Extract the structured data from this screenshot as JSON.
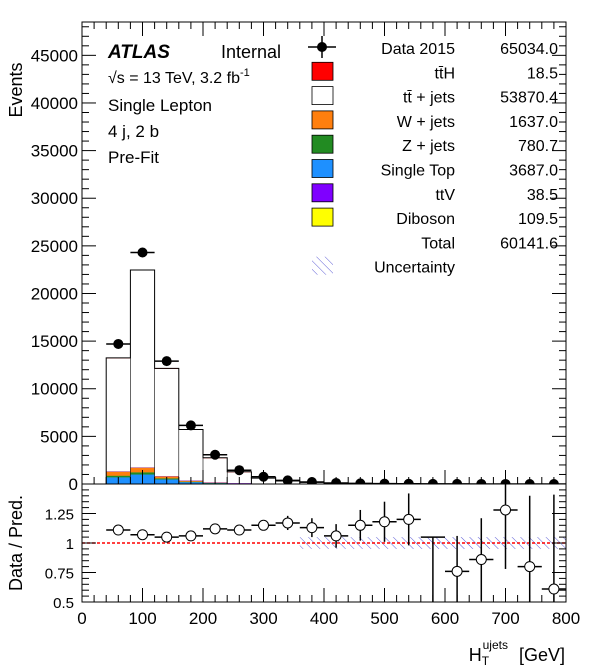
{
  "chart_data": [
    {
      "type": "bar",
      "subtype": "stacked-histogram-with-data-points",
      "xlabel": "H_T^ujets [GeV]",
      "ylabel": "Events",
      "xlim": [
        0,
        800
      ],
      "ylim": [
        0,
        48500
      ],
      "yticks": [
        0,
        5000,
        10000,
        15000,
        20000,
        25000,
        30000,
        35000,
        40000,
        45000
      ],
      "bin_edges": [
        40,
        80,
        120,
        160,
        200,
        240,
        280,
        320,
        360,
        400,
        440,
        480,
        520,
        560,
        600,
        640,
        680,
        720,
        760,
        800
      ],
      "annotations": {
        "atlas": "ATLAS",
        "internal": "Internal",
        "energy_pre": "√s = 13 TeV, 3.2 fb",
        "energy_sup": "-1",
        "channel": "Single Lepton",
        "jets": "4 j, 2 b",
        "fit": "Pre-Fit"
      },
      "legend": {
        "placement": "top-right",
        "data": {
          "label": "Data 2015",
          "value": "65034.0"
        },
        "entries": [
          {
            "label": "tt̄H",
            "value": "18.5",
            "color": "#ff0000"
          },
          {
            "label": "tt̄ + jets",
            "value": "53870.4",
            "color": "#ffffff"
          },
          {
            "label": "W + jets",
            "value": "1637.0",
            "color": "#ff7f0e"
          },
          {
            "label": "Z + jets",
            "value": "780.7",
            "color": "#228b22"
          },
          {
            "label": "Single Top",
            "value": "3687.0",
            "color": "#1e90ff"
          },
          {
            "label": "ttV",
            "value": "38.5",
            "color": "#7f00ff"
          },
          {
            "label": "Diboson",
            "value": "109.5",
            "color": "#ffff00"
          }
        ],
        "total": {
          "label": "Total",
          "value": "60141.6"
        },
        "uncertainty": {
          "label": "Uncertainty"
        }
      },
      "series": [
        {
          "name": "Single Top",
          "color": "#1e90ff",
          "values": [
            700,
            1000,
            480,
            200,
            100,
            50,
            25,
            12,
            6,
            3,
            2,
            1,
            1,
            0,
            0,
            0,
            0,
            0,
            0
          ]
        },
        {
          "name": "Z + jets",
          "color": "#228b22",
          "values": [
            180,
            230,
            110,
            50,
            25,
            12,
            6,
            3,
            2,
            1,
            1,
            0,
            0,
            0,
            0,
            0,
            0,
            0,
            0
          ]
        },
        {
          "name": "W + jets",
          "color": "#ff7f0e",
          "values": [
            420,
            480,
            220,
            110,
            50,
            25,
            13,
            6,
            3,
            2,
            1,
            1,
            0,
            0,
            0,
            0,
            0,
            0,
            0
          ]
        },
        {
          "name": "Diboson",
          "color": "#ffff00",
          "values": [
            30,
            35,
            18,
            8,
            4,
            2,
            1,
            1,
            0,
            0,
            0,
            0,
            0,
            0,
            0,
            0,
            0,
            0,
            0
          ]
        },
        {
          "name": "ttV",
          "color": "#7f00ff",
          "values": [
            8,
            12,
            7,
            4,
            2,
            1,
            1,
            0,
            0,
            0,
            0,
            0,
            0,
            0,
            0,
            0,
            0,
            0,
            0
          ]
        },
        {
          "name": "tt̄ + jets",
          "color": "#ffffff",
          "values": [
            11900,
            20700,
            11300,
            5350,
            2570,
            1190,
            565,
            290,
            160,
            90,
            55,
            30,
            20,
            10,
            6,
            4,
            3,
            2,
            1
          ]
        },
        {
          "name": "tt̄H",
          "color": "#ff0000",
          "values": [
            3,
            5,
            4,
            2,
            1,
            1,
            0,
            0,
            0,
            0,
            0,
            0,
            0,
            0,
            0,
            0,
            0,
            0,
            0
          ]
        }
      ],
      "data_points": {
        "name": "Data 2015",
        "x": [
          60,
          100,
          140,
          180,
          220,
          260,
          300,
          340,
          380,
          420,
          460,
          500,
          540,
          580,
          620,
          660,
          700,
          740,
          780
        ],
        "values": [
          14700,
          24300,
          12900,
          6150,
          3070,
          1450,
          760,
          380,
          210,
          110,
          65,
          36,
          24,
          14,
          8,
          5,
          4,
          2,
          1
        ]
      }
    },
    {
      "type": "scatter",
      "subtype": "ratio",
      "xlabel": "H_T^ujets [GeV]",
      "ylabel": "Data / Pred.",
      "xlim": [
        0,
        800
      ],
      "ylim": [
        0.5,
        1.5
      ],
      "yticks": [
        0.5,
        0.75,
        1,
        1.25
      ],
      "yticklabels": [
        "0.5",
        "0.75",
        "1",
        "1.25"
      ],
      "xticks": [
        0,
        100,
        200,
        300,
        400,
        500,
        600,
        700,
        800
      ],
      "xticklabels": [
        "0",
        "100",
        "200",
        "300",
        "400",
        "500",
        "600",
        "700",
        "800"
      ],
      "reference_line": 1,
      "x": [
        60,
        100,
        140,
        180,
        220,
        260,
        300,
        340,
        380,
        420,
        460,
        500,
        540,
        580,
        620,
        660,
        700,
        740,
        780
      ],
      "y": [
        1.11,
        1.07,
        1.05,
        1.06,
        1.12,
        1.11,
        1.15,
        1.17,
        1.13,
        1.06,
        1.15,
        1.18,
        1.2,
        null,
        0.76,
        0.86,
        1.28,
        0.8,
        0.61
      ],
      "yerr": [
        0.01,
        0.01,
        0.01,
        0.01,
        0.02,
        0.03,
        0.04,
        0.06,
        0.08,
        0.1,
        0.13,
        0.17,
        0.22,
        0.3,
        0.3,
        0.35,
        0.5,
        0.6,
        0.8
      ],
      "uncertainty_band": {
        "x_range": [
          360,
          800
        ],
        "half_width": [
          0.05,
          0.05,
          0.05,
          0.05,
          0.05,
          0.05,
          0.05,
          0.05,
          0.05,
          0.05,
          0.05
        ]
      }
    }
  ]
}
